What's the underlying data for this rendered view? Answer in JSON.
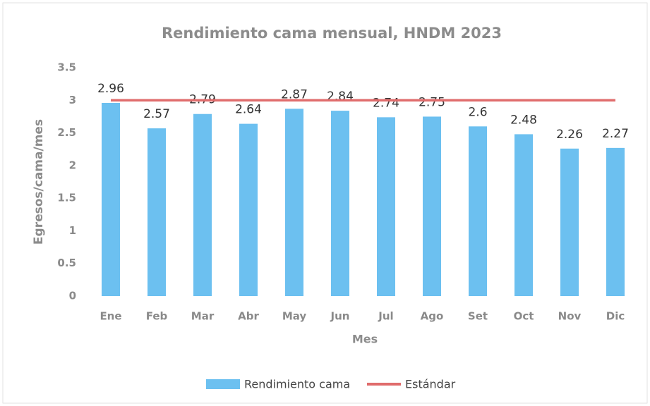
{
  "chart_data": {
    "type": "bar",
    "title": "Rendimiento cama mensual, HNDM 2023",
    "x_label": "Mes",
    "y_label": "Egresos/cama/mes",
    "categories": [
      "Ene",
      "Feb",
      "Mar",
      "Abr",
      "May",
      "Jun",
      "Jul",
      "Ago",
      "Set",
      "Oct",
      "Nov",
      "Dic"
    ],
    "series": [
      {
        "name": "Rendimiento cama",
        "type": "bar",
        "color": "#6cc0f0",
        "values": [
          2.96,
          2.57,
          2.79,
          2.64,
          2.87,
          2.84,
          2.74,
          2.75,
          2.6,
          2.48,
          2.26,
          2.27
        ]
      },
      {
        "name": "Estándar",
        "type": "line",
        "color": "#e06c6c",
        "values": [
          3,
          3,
          3,
          3,
          3,
          3,
          3,
          3,
          3,
          3,
          3,
          3
        ]
      }
    ],
    "ylim": [
      0,
      3.5
    ],
    "yticks": [
      0,
      0.5,
      1,
      1.5,
      2,
      2.5,
      3,
      3.5
    ],
    "grid": false,
    "legend": "bottom"
  }
}
